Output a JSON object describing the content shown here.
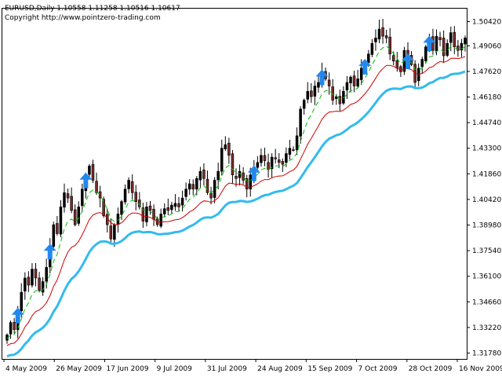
{
  "header": {
    "symbol_line": "EURUSD,Daily  1.10558 1.11258 1.10516 1.10617",
    "copyright": "Copyright http://www.pointzero-trading.com"
  },
  "colors": {
    "background": "#ffffff",
    "frame": "#000000",
    "candle_bull": "#000000",
    "candle_bear": "#7b2a2a",
    "fast_ma": "#00c000",
    "mid_ma": "#d00000",
    "slow_ma": "#33bbee",
    "arrow": "#2288ee"
  },
  "chart_data": {
    "type": "candlestick",
    "grid": false,
    "y_axis_position": "right",
    "ylim": [
      1.3145,
      1.5115
    ],
    "y_ticks": [
      "1.50420",
      "1.49060",
      "1.47620",
      "1.46180",
      "1.44740",
      "1.43300",
      "1.41860",
      "1.40420",
      "1.38980",
      "1.37540",
      "1.36100",
      "1.34660",
      "1.33220",
      "1.31780"
    ],
    "x_ticks": [
      "4 May 2009",
      "26 May 2009",
      "17 Jun 2009",
      "9 Jul 2009",
      "31 Jul 2009",
      "24 Aug 2009",
      "15 Sep 2009",
      "7 Oct 2009",
      "28 Oct 2009",
      "16 Nov 2009"
    ],
    "series_closes": [
      1.328,
      1.335,
      1.331,
      1.342,
      1.352,
      1.36,
      1.356,
      1.365,
      1.36,
      1.353,
      1.358,
      1.366,
      1.378,
      1.39,
      1.385,
      1.4,
      1.408,
      1.405,
      1.398,
      1.39,
      1.4,
      1.41,
      1.418,
      1.423,
      1.415,
      1.408,
      1.405,
      1.395,
      1.39,
      1.382,
      1.39,
      1.396,
      1.403,
      1.41,
      1.415,
      1.408,
      1.403,
      1.4,
      1.392,
      1.4,
      1.398,
      1.393,
      1.39,
      1.396,
      1.399,
      1.398,
      1.401,
      1.402,
      1.4,
      1.405,
      1.41,
      1.413,
      1.41,
      1.416,
      1.42,
      1.416,
      1.408,
      1.405,
      1.415,
      1.42,
      1.433,
      1.435,
      1.429,
      1.418,
      1.416,
      1.42,
      1.415,
      1.41,
      1.418,
      1.422,
      1.425,
      1.429,
      1.426,
      1.421,
      1.428,
      1.427,
      1.425,
      1.424,
      1.43,
      1.433,
      1.432,
      1.44,
      1.455,
      1.46,
      1.465,
      1.462,
      1.468,
      1.47,
      1.476,
      1.472,
      1.468,
      1.46,
      1.462,
      1.458,
      1.465,
      1.47,
      1.473,
      1.468,
      1.472,
      1.478,
      1.482,
      1.486,
      1.492,
      1.495,
      1.5,
      1.496,
      1.495,
      1.486,
      1.482,
      1.478,
      1.476,
      1.488,
      1.485,
      1.48,
      1.47,
      1.478,
      1.483,
      1.49,
      1.495,
      1.488,
      1.496,
      1.494,
      1.485,
      1.492,
      1.498,
      1.49,
      1.488,
      1.492,
      1.495
    ],
    "arrow_bars": [
      3,
      12,
      22,
      69,
      88,
      100,
      112,
      118
    ]
  }
}
